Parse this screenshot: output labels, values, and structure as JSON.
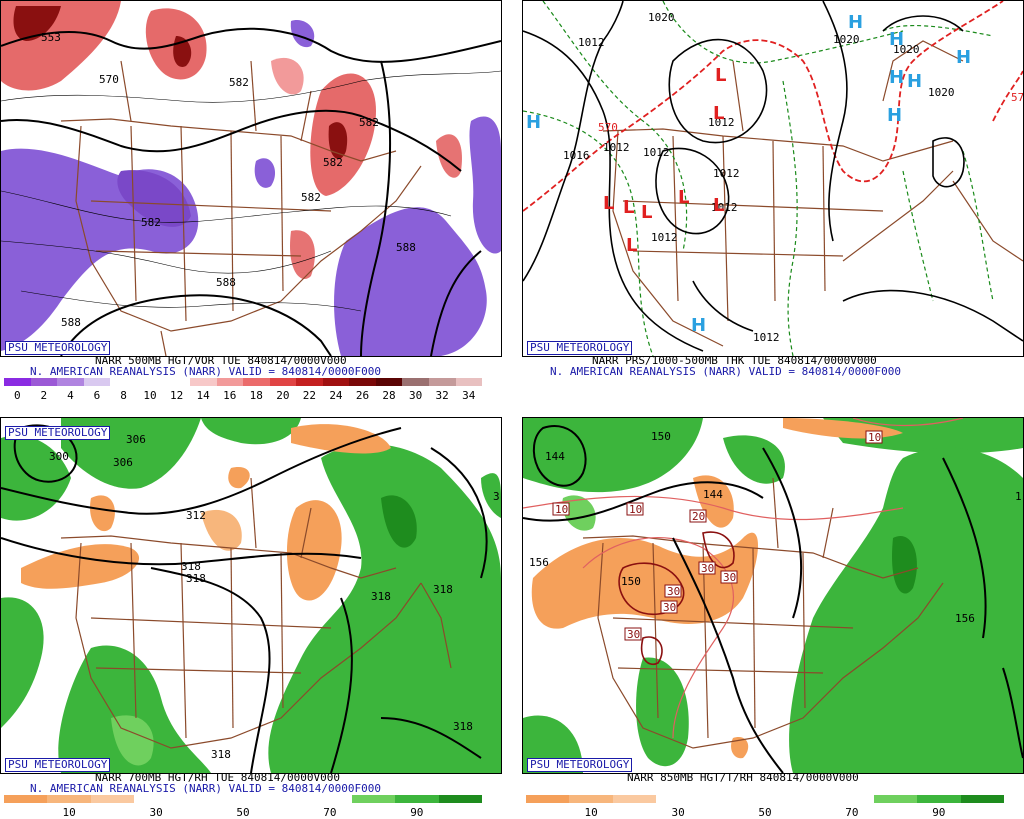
{
  "panels": {
    "p1": {
      "credit": "PSU METEOROLOGY",
      "line1": "NARR 500MB HGT/VOR TUE 840814/0000V000",
      "line2": "N. AMERICAN REANALYSIS (NARR) VALID = 840814/0000F000",
      "colorbar_colors": [
        "#8a2be2",
        "#9b59d6",
        "#b084e0",
        "#d9c9f0",
        "#ffffff",
        "#ffffff",
        "#ffffff",
        "#f7c8c8",
        "#f29a9a",
        "#eb6b6b",
        "#e04444",
        "#c42020",
        "#a01010",
        "#7a0808",
        "#5a0404",
        "#9a7070",
        "#c49a9a",
        "#e8c0c0"
      ],
      "colorbar_ticks": [
        "0",
        "2",
        "4",
        "6",
        "8",
        "10",
        "12",
        "14",
        "16",
        "18",
        "20",
        "22",
        "24",
        "26",
        "28",
        "30",
        "32",
        "34"
      ],
      "contour_labels": [
        "553",
        "570",
        "582",
        "582",
        "582",
        "582",
        "582",
        "588",
        "588",
        "588"
      ]
    },
    "p2": {
      "credit": "PSU METEOROLOGY",
      "line1": "NARR PRS/1000-500MB THK TUE 840814/0000V000",
      "line2": "N. AMERICAN REANALYSIS (NARR) VALID = 840814/0000F000",
      "contour_labels": [
        "1012",
        "1020",
        "1020",
        "1020",
        "1020",
        "1016",
        "1012",
        "1012",
        "1012",
        "1012",
        "1012",
        "1012",
        "1012",
        "570",
        "57"
      ],
      "highs": [
        "H",
        "H",
        "H",
        "H",
        "H",
        "H",
        "H",
        "H"
      ],
      "lows": [
        "L",
        "L",
        "L",
        "L",
        "L",
        "L",
        "L",
        "L"
      ]
    },
    "p3": {
      "credit": "PSU METEOROLOGY",
      "line1": "NARR 700MB HGT/RH TUE 840814/0000V000",
      "line2": "N. AMERICAN REANALYSIS (NARR) VALID = 840814/0000F000",
      "colorbar_colors": [
        "#f5a05a",
        "#f7b67c",
        "#fac9a0",
        "#ffffff",
        "#ffffff",
        "#ffffff",
        "#ffffff",
        "#ffffff",
        "#6fd05e",
        "#3cb53c",
        "#1e8c1e"
      ],
      "colorbar_ticks": [
        "10",
        "30",
        "50",
        "70",
        "90"
      ],
      "contour_labels": [
        "300",
        "306",
        "306",
        "312",
        "318",
        "318",
        "318",
        "318",
        "318",
        "318",
        "3"
      ]
    },
    "p4": {
      "credit": "PSU METEOROLOGY",
      "line1": "NARR 850MB HGT/T/RH 840814/0000V000",
      "colorbar_colors": [
        "#f5a05a",
        "#f7b67c",
        "#fac9a0",
        "#ffffff",
        "#ffffff",
        "#ffffff",
        "#ffffff",
        "#ffffff",
        "#6fd05e",
        "#3cb53c",
        "#1e8c1e"
      ],
      "colorbar_ticks": [
        "10",
        "30",
        "50",
        "70",
        "90"
      ],
      "contour_labels": [
        "150",
        "144",
        "144",
        "150",
        "156",
        "156",
        "1"
      ],
      "temp_labels": [
        "10",
        "10",
        "10",
        "20",
        "30",
        "30",
        "30",
        "30",
        "30"
      ]
    }
  },
  "colors": {
    "vorticity_pos": "#e05050",
    "vorticity_neg": "#8a60d8",
    "rh_moist": "#3cb53c",
    "rh_dry": "#f5a05a",
    "border": "#8b4a2b",
    "high": "#2aa0e0",
    "low": "#e02020"
  }
}
